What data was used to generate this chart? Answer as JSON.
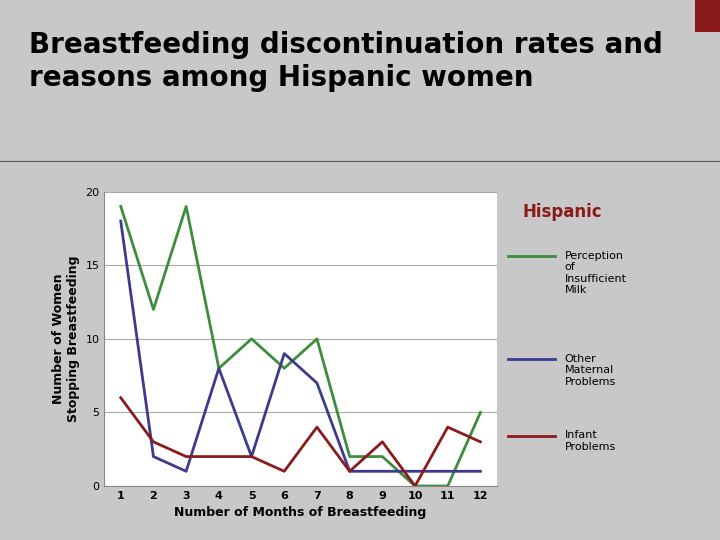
{
  "title_line1": "Breastfeeding discontinuation rates and",
  "title_line2": "reasons among Hispanic women",
  "xlabel": "Number of Months of Breastfeeding",
  "ylabel": "Number of Women\nStopping Breastfeeding",
  "months": [
    1,
    2,
    3,
    4,
    5,
    6,
    7,
    8,
    9,
    10,
    11,
    12
  ],
  "perception_insufficient_milk": [
    19,
    12,
    19,
    8,
    10,
    8,
    10,
    2,
    2,
    0,
    0,
    5
  ],
  "other_maternal_problems": [
    18,
    2,
    1,
    8,
    2,
    9,
    7,
    1,
    1,
    1,
    1,
    1
  ],
  "infant_problems": [
    6,
    3,
    2,
    2,
    2,
    1,
    4,
    1,
    3,
    0,
    4,
    3
  ],
  "color_perception": "#3e8c3e",
  "color_maternal": "#3c3c8c",
  "color_infant": "#8b1a1a",
  "legend_title": "Hispanic",
  "legend_title_color": "#8b1a1a",
  "ylim": [
    0,
    20
  ],
  "yticks": [
    0,
    5,
    10,
    15,
    20
  ],
  "slide_bg": "#c8c8c8",
  "title_bg": "#d0d0d0",
  "chart_bg": "#e8e8e8",
  "plot_bg": "#ffffff",
  "grid_color": "#aaaaaa",
  "separator_color": "#555555",
  "red_square_color": "#8b1a1a",
  "title_fontsize": 20,
  "axis_label_fontsize": 9,
  "tick_fontsize": 8,
  "legend_title_fontsize": 12,
  "legend_text_fontsize": 8
}
